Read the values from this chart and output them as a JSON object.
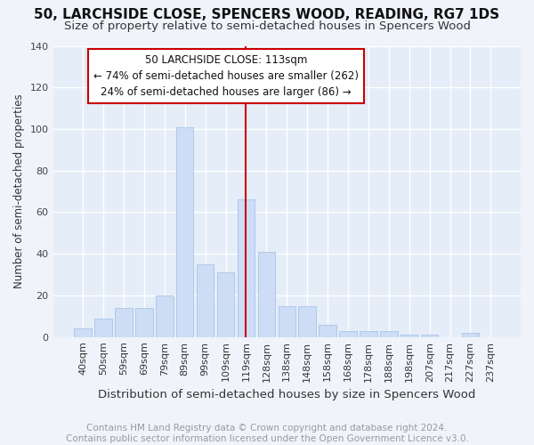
{
  "title": "50, LARCHSIDE CLOSE, SPENCERS WOOD, READING, RG7 1DS",
  "subtitle": "Size of property relative to semi-detached houses in Spencers Wood",
  "xlabel": "Distribution of semi-detached houses by size in Spencers Wood",
  "ylabel": "Number of semi-detached properties",
  "categories": [
    "40sqm",
    "50sqm",
    "59sqm",
    "69sqm",
    "79sqm",
    "89sqm",
    "99sqm",
    "109sqm",
    "119sqm",
    "128sqm",
    "138sqm",
    "148sqm",
    "158sqm",
    "168sqm",
    "178sqm",
    "188sqm",
    "198sqm",
    "207sqm",
    "217sqm",
    "227sqm",
    "237sqm"
  ],
  "values": [
    4,
    9,
    14,
    14,
    20,
    101,
    35,
    31,
    66,
    41,
    15,
    15,
    6,
    3,
    3,
    3,
    1,
    1,
    0,
    2,
    0
  ],
  "bar_color": "#ccddf5",
  "bar_edge_color": "#aac4e8",
  "background_color": "#f0f4fa",
  "plot_bg_color": "#e4edf8",
  "grid_color": "#ffffff",
  "vline_x": 8.0,
  "vline_color": "#cc0000",
  "annotation_line1": "50 LARCHSIDE CLOSE: 113sqm",
  "annotation_line2": "← 74% of semi-detached houses are smaller (262)",
  "annotation_line3": "24% of semi-detached houses are larger (86) →",
  "annotation_box_color": "#ffffff",
  "annotation_box_edge": "#cc0000",
  "ylim": [
    0,
    140
  ],
  "yticks": [
    0,
    20,
    40,
    60,
    80,
    100,
    120,
    140
  ],
  "footnote": "Contains HM Land Registry data © Crown copyright and database right 2024.\nContains public sector information licensed under the Open Government Licence v3.0.",
  "title_fontsize": 11,
  "subtitle_fontsize": 9.5,
  "xlabel_fontsize": 9.5,
  "ylabel_fontsize": 8.5,
  "tick_fontsize": 8,
  "annotation_fontsize": 8.5,
  "footnote_fontsize": 7.5
}
